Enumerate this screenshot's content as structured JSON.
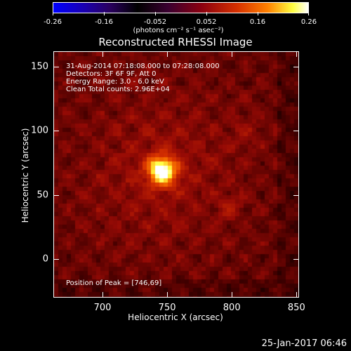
{
  "colorbar": {
    "tick_labels": [
      "-0.26",
      "-0.16",
      "-0.052",
      "0.052",
      "0.16",
      "0.26"
    ],
    "units_label": "(photons cm⁻² s⁻¹ asec⁻²)"
  },
  "plot": {
    "title": "Reconstructed RHESSI Image",
    "xlabel": "Heliocentric X (arcsec)",
    "ylabel": "Heliocentric Y (arcsec)",
    "x_ticks": [
      "700",
      "750",
      "800",
      "850"
    ],
    "y_ticks": [
      "150",
      "100",
      "50",
      "0"
    ],
    "xlim": [
      662,
      852
    ],
    "ylim": [
      -30,
      162
    ]
  },
  "info": {
    "time_range": "31-Aug-2014 07:18:08.000 to 07:28:08.000",
    "detectors": "Detectors: 3F 6F 9F, Att 0",
    "energy": "Energy Range: 3.0 - 6.0 keV",
    "clean": "Clean     Total counts: 2.96E+04",
    "peak": "Position of Peak = [746,69]"
  },
  "peak_position": [
    746,
    69
  ],
  "timestamp": "25-Jan-2017 06:46"
}
